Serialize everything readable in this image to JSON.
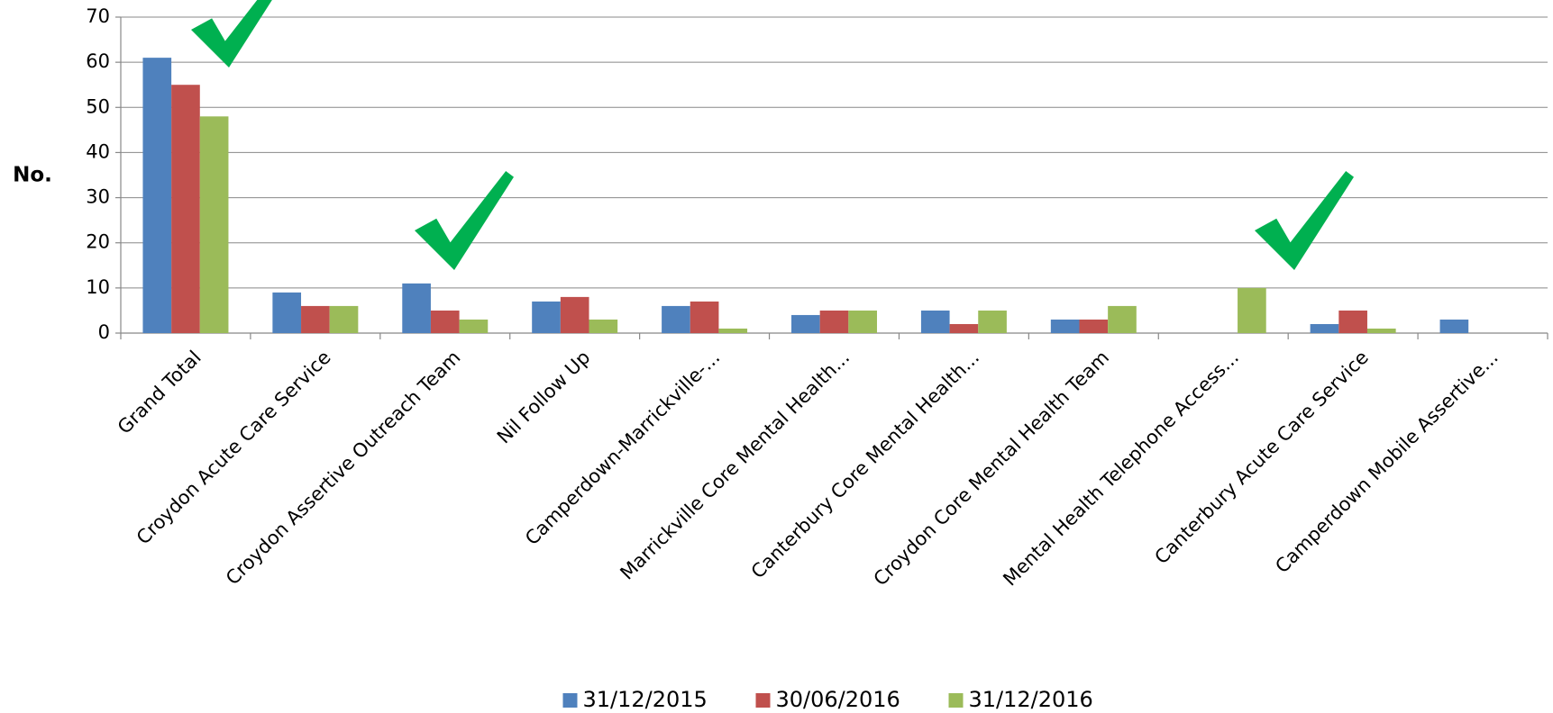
{
  "chart_data": {
    "type": "bar",
    "y_label": "No.",
    "categories": [
      "Grand Total",
      "Croydon Acute Care Service",
      "Croydon Assertive Outreach Team",
      "Nil Follow Up",
      "Camperdown-Marrickville-...",
      "Marrickville Core Mental Health...",
      "Canterbury Core Mental Health...",
      "Croydon Core Mental Health Team",
      "Mental Health Telephone Access...",
      "Canterbury Acute Care Service",
      "Camperdown Mobile Assertive..."
    ],
    "series": [
      {
        "name": "31/12/2015",
        "color": "#4f81bd",
        "values": [
          61,
          9,
          11,
          7,
          6,
          4,
          5,
          3,
          0,
          2,
          3
        ]
      },
      {
        "name": "30/06/2016",
        "color": "#c0504d",
        "values": [
          55,
          6,
          5,
          8,
          7,
          5,
          2,
          3,
          0,
          5,
          0
        ]
      },
      {
        "name": "31/12/2016",
        "color": "#9bbb59",
        "values": [
          48,
          6,
          3,
          3,
          1,
          5,
          5,
          6,
          10,
          1,
          0
        ]
      }
    ],
    "ylim": [
      0,
      70
    ],
    "yticks": [
      0,
      10,
      20,
      30,
      40,
      50,
      60,
      70
    ],
    "grid": true,
    "legend": "bottom"
  }
}
